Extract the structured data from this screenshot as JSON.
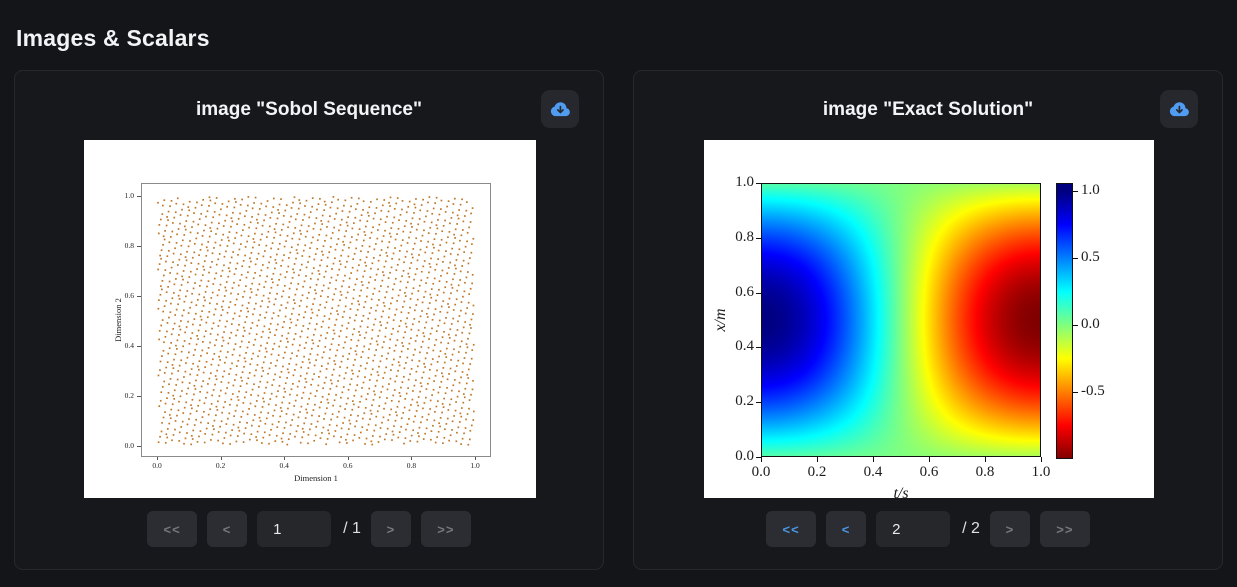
{
  "page": {
    "title": "Images & Scalars"
  },
  "colors": {
    "page_bg": "#141519",
    "card_bg": "#17181c",
    "card_border": "#27282e",
    "button_bg": "#2b2d32",
    "button_disabled_text": "#75787e",
    "accent_blue": "#4b97e4",
    "scatter_point": "#c0782a",
    "plot_bg": "#ffffff"
  },
  "cards": [
    {
      "title": "image \"Sobol Sequence\"",
      "download_icon": "cloud-download-icon",
      "pager": {
        "first_label": "<<",
        "prev_label": "<",
        "next_label": ">",
        "last_label": ">>",
        "page_value": "1",
        "total_label": "/ 1",
        "first_enabled": false,
        "prev_enabled": false,
        "next_enabled": false,
        "last_enabled": false
      }
    },
    {
      "title": "image \"Exact Solution\"",
      "download_icon": "cloud-download-icon",
      "pager": {
        "first_label": "<<",
        "prev_label": "<",
        "next_label": ">",
        "last_label": ">>",
        "page_value": "2",
        "total_label": "/ 2",
        "first_enabled": true,
        "prev_enabled": true,
        "next_enabled": false,
        "last_enabled": false
      }
    }
  ],
  "chart_data": [
    {
      "type": "scatter",
      "title": "Sobol Sequence",
      "xlabel": "Dimension 1",
      "ylabel": "Dimension 2",
      "xticks": [
        "0.0",
        "0.2",
        "0.4",
        "0.6",
        "0.8",
        "1.0"
      ],
      "yticks": [
        "1.0",
        "0.8",
        "0.6",
        "0.4",
        "0.2",
        "0.0"
      ],
      "xlim": [
        0,
        1
      ],
      "ylim": [
        0,
        1
      ],
      "point_color": "#c0782a",
      "point_count": 2048,
      "point_size": 1.7,
      "note": "2-D quasi-random (Sobol) sample points uniformly filling the unit square"
    },
    {
      "type": "heatmap",
      "title": "Exact Solution",
      "xlabel": "t/s",
      "ylabel": "x/m",
      "xticks": [
        "0.0",
        "0.2",
        "0.4",
        "0.6",
        "0.8",
        "1.0"
      ],
      "yticks": [
        "1.0",
        "0.8",
        "0.6",
        "0.4",
        "0.2",
        "0.0"
      ],
      "xlim": [
        0,
        1
      ],
      "ylim": [
        0,
        1
      ],
      "colormap": "jet_r",
      "vmin": -1.0,
      "vmax": 1.0,
      "colorbar_ticks": [
        "1.0",
        "0.5",
        "0.0",
        "-0.5"
      ],
      "function": "u(x,t) = sin(pi*x) * cos(pi*t)"
    }
  ]
}
